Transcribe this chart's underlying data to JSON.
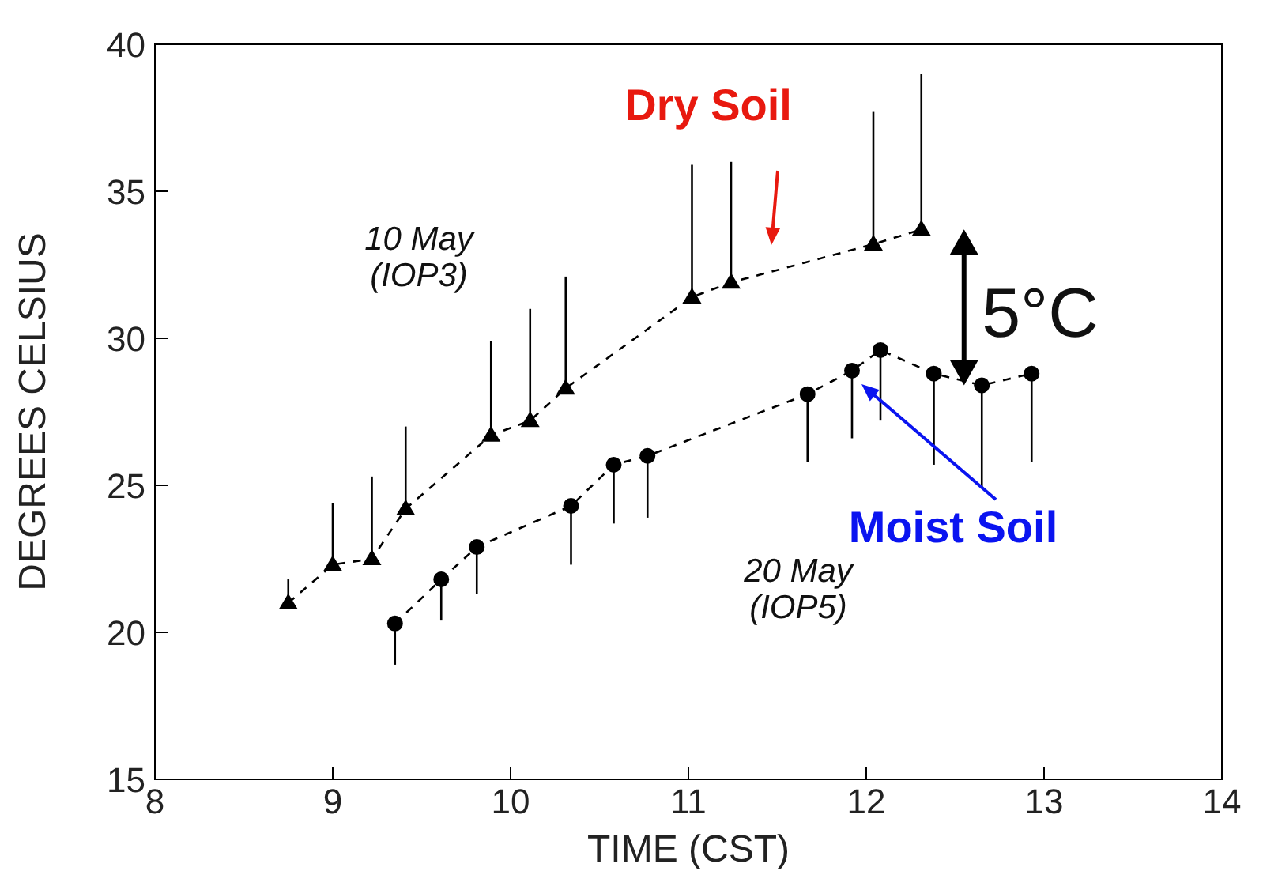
{
  "chart_data": {
    "type": "line",
    "xlabel": "TIME  (CST)",
    "ylabel": "DEGREES CELSIUS",
    "xlim": [
      8,
      14
    ],
    "xticks": [
      8,
      9,
      10,
      11,
      12,
      13,
      14
    ],
    "ylim": [
      15,
      40
    ],
    "yticks": [
      15,
      20,
      25,
      30,
      35,
      40
    ],
    "grid": false,
    "line_style": "dashed",
    "series": [
      {
        "color": "#000000",
        "marker": "triangle",
        "x": [
          8.75,
          9.0,
          9.22,
          9.41,
          9.89,
          10.11,
          10.31,
          11.02,
          11.24,
          12.04,
          12.31
        ],
        "values": [
          21.0,
          22.3,
          22.5,
          24.2,
          26.7,
          27.2,
          28.3,
          31.4,
          31.9,
          33.2,
          33.7
        ],
        "errors": [
          [
            21.0,
            21.8
          ],
          [
            22.3,
            24.4
          ],
          [
            22.5,
            25.3
          ],
          [
            24.2,
            27.0
          ],
          [
            26.7,
            29.9
          ],
          [
            27.2,
            31.0
          ],
          [
            28.3,
            32.1
          ],
          [
            31.4,
            35.9
          ],
          [
            31.9,
            36.0
          ],
          [
            33.2,
            37.7
          ],
          [
            33.7,
            39.0
          ]
        ]
      },
      {
        "color": "#000000",
        "marker": "circle",
        "x": [
          9.35,
          9.61,
          9.81,
          10.34,
          10.58,
          10.77,
          11.67,
          11.92,
          12.08,
          12.38,
          12.65,
          12.93
        ],
        "values": [
          20.3,
          21.8,
          22.9,
          24.3,
          25.7,
          26.0,
          28.1,
          28.9,
          29.6,
          28.8,
          28.4,
          28.8
        ],
        "errors": [
          [
            18.9,
            20.3
          ],
          [
            20.4,
            21.8
          ],
          [
            21.3,
            22.9
          ],
          [
            22.3,
            24.3
          ],
          [
            23.7,
            25.7
          ],
          [
            23.9,
            26.0
          ],
          [
            25.8,
            28.1
          ],
          [
            26.6,
            28.9
          ],
          [
            27.2,
            29.6
          ],
          [
            25.7,
            28.8
          ],
          [
            24.9,
            28.4
          ],
          [
            25.8,
            28.8
          ]
        ]
      }
    ],
    "annotations": [
      "Dry Soil",
      "Moist Soil",
      "10 May\n(IOP3)",
      "20 May\n(IOP5)",
      "5°C"
    ]
  }
}
